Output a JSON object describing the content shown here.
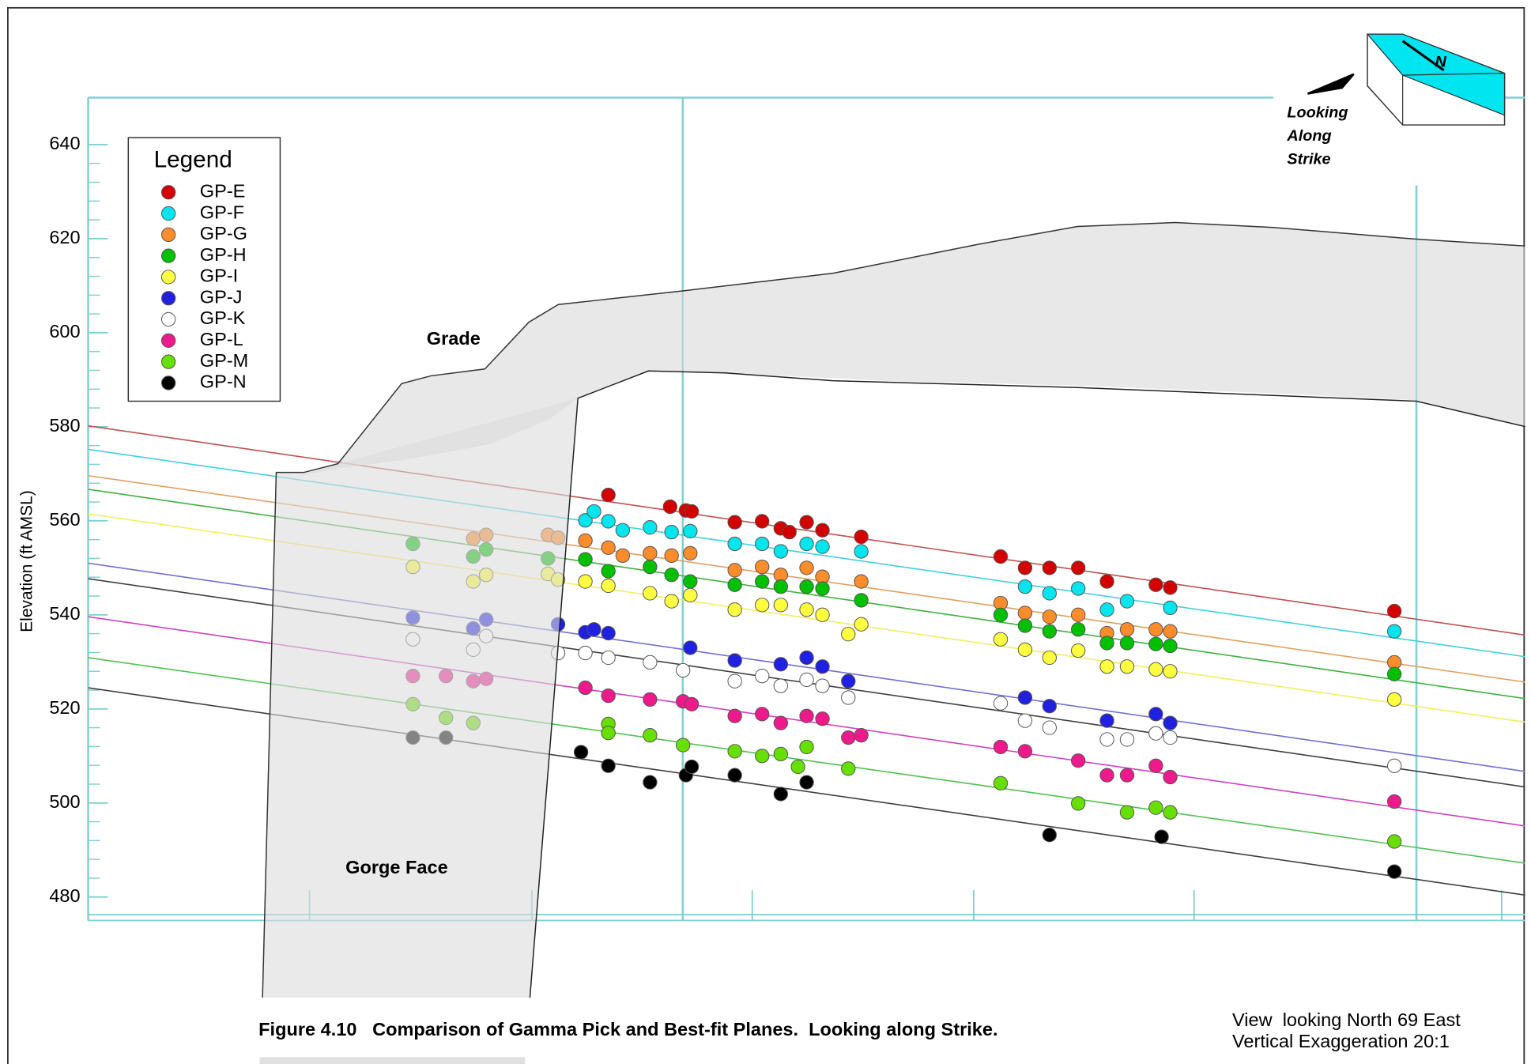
{
  "chart_data": {
    "type": "scatter",
    "legend_title": "Legend",
    "y_label": "Elevation (ft AMSL)",
    "annotations": {
      "grade": "Grade",
      "gorge_face": "Gorge Face",
      "compass": [
        "Looking",
        "Along",
        "Strike"
      ],
      "compass_n": "N"
    },
    "caption": "Figure 4.10   Comparison of Gamma Pick and Best-fit Planes.  Looking along Strike.",
    "view_note": [
      "View  looking North 69 East",
      "Vertical Exaggeration 20:1"
    ],
    "xlim": [
      0,
      100
    ],
    "ylim": [
      475,
      650
    ],
    "yticks": [
      480,
      500,
      520,
      540,
      560,
      580,
      600,
      620,
      640
    ],
    "series": [
      {
        "name": "GP-E",
        "color": "#d40000",
        "line_color": "#c05050",
        "fit_x": [
          0,
          100
        ],
        "fit_y": [
          580.2,
          535.7
        ],
        "x": [
          36.2,
          40.5,
          41.6,
          42.0,
          45.0,
          46.9,
          48.2,
          48.8,
          50.0,
          51.1,
          53.8,
          63.5,
          65.2,
          66.9,
          68.9,
          70.9,
          74.3,
          75.3,
          90.9
        ],
        "values": [
          565.5,
          563.0,
          562.2,
          562.0,
          559.7,
          559.9,
          558.4,
          557.6,
          559.7,
          558.0,
          556.6,
          552.4,
          550.0,
          550.0,
          550.0,
          547.1,
          546.4,
          545.8,
          540.8
        ]
      },
      {
        "name": "GP-F",
        "color": "#00e5ee",
        "line_color": "#40d0e0",
        "fit_x": [
          0,
          100
        ],
        "fit_y": [
          575.2,
          531.1
        ],
        "x": [
          34.6,
          35.2,
          36.2,
          37.2,
          39.1,
          40.6,
          41.9,
          45.0,
          46.9,
          48.2,
          50.0,
          51.1,
          53.8,
          65.2,
          66.9,
          68.9,
          70.9,
          72.3,
          75.3,
          90.9
        ],
        "values": [
          560.1,
          562.0,
          559.9,
          558.0,
          558.6,
          557.6,
          557.8,
          555.1,
          555.1,
          553.5,
          555.1,
          554.5,
          553.5,
          546.0,
          544.6,
          545.6,
          541.1,
          542.9,
          541.5,
          536.5
        ]
      },
      {
        "name": "GP-G",
        "color": "#ff8c2a",
        "line_color": "#e0a060",
        "fit_x": [
          0,
          100
        ],
        "fit_y": [
          569.6,
          525.7
        ],
        "x": [
          26.8,
          27.7,
          32.0,
          32.7,
          34.6,
          36.2,
          37.2,
          39.1,
          40.6,
          41.9,
          45.0,
          46.9,
          48.2,
          50.0,
          51.1,
          53.8,
          63.5,
          65.2,
          66.9,
          68.9,
          70.9,
          72.3,
          74.3,
          75.3,
          90.9
        ],
        "values": [
          556.2,
          557.0,
          557.0,
          556.4,
          555.8,
          554.3,
          552.6,
          553.1,
          552.6,
          553.1,
          549.5,
          550.2,
          548.5,
          550.0,
          548.1,
          547.1,
          542.5,
          540.4,
          539.6,
          540.0,
          536.1,
          536.9,
          536.9,
          536.5,
          529.9
        ]
      },
      {
        "name": "GP-H",
        "color": "#00c000",
        "line_color": "#40b040",
        "fit_x": [
          0,
          100
        ],
        "fit_y": [
          566.7,
          522.2
        ],
        "x": [
          22.6,
          26.8,
          27.7,
          32.0,
          34.6,
          36.2,
          39.1,
          40.6,
          41.9,
          45.0,
          46.9,
          48.2,
          50.0,
          51.1,
          53.8,
          63.5,
          65.2,
          66.9,
          68.9,
          70.9,
          72.3,
          74.3,
          75.3,
          90.9
        ],
        "values": [
          555.1,
          552.4,
          553.9,
          552.0,
          551.8,
          549.3,
          550.2,
          548.5,
          547.1,
          546.4,
          547.1,
          546.0,
          546.0,
          545.6,
          543.1,
          540.0,
          537.7,
          536.5,
          536.9,
          534.0,
          534.0,
          533.8,
          533.4,
          527.4
        ]
      },
      {
        "name": "GP-I",
        "color": "#ffff40",
        "line_color": "#f0f060",
        "fit_x": [
          0,
          100
        ],
        "fit_y": [
          561.5,
          517.2
        ],
        "x": [
          22.6,
          26.8,
          27.7,
          32.0,
          32.7,
          34.6,
          36.2,
          39.1,
          40.6,
          41.9,
          45.0,
          46.9,
          48.2,
          50.0,
          51.1,
          52.9,
          53.8,
          63.5,
          65.2,
          66.9,
          68.9,
          70.9,
          72.3,
          74.3,
          75.3,
          90.9
        ],
        "values": [
          550.2,
          547.1,
          548.5,
          548.7,
          547.5,
          547.1,
          546.2,
          544.6,
          542.9,
          544.2,
          541.1,
          542.1,
          542.1,
          541.1,
          540.0,
          535.9,
          538.0,
          534.8,
          532.6,
          530.9,
          532.4,
          529.0,
          529.0,
          528.4,
          528.0,
          522.0
        ]
      },
      {
        "name": "GP-J",
        "color": "#2020e0",
        "line_color": "#7070d0",
        "fit_x": [
          0,
          100
        ],
        "fit_y": [
          551.0,
          506.7
        ],
        "x": [
          22.6,
          26.8,
          27.7,
          32.7,
          34.6,
          35.2,
          36.2,
          41.9,
          45.0,
          48.2,
          50.0,
          51.1,
          52.9,
          65.2,
          66.9,
          70.9,
          74.3,
          75.3
        ],
        "values": [
          539.4,
          537.1,
          539.0,
          538.0,
          536.3,
          536.9,
          536.1,
          533.0,
          530.3,
          529.5,
          530.9,
          529.0,
          525.9,
          522.4,
          520.6,
          517.5,
          518.9,
          517.0
        ]
      },
      {
        "name": "GP-K",
        "color": "#ffffff",
        "line_color": "#404040",
        "fit_x": [
          0,
          100
        ],
        "fit_y": [
          547.7,
          503.4
        ],
        "x": [
          22.6,
          26.8,
          27.7,
          32.7,
          34.6,
          36.2,
          39.1,
          41.4,
          45.0,
          46.9,
          48.2,
          50.0,
          51.1,
          52.9,
          63.5,
          65.2,
          66.9,
          70.9,
          72.3,
          74.3,
          75.3,
          90.9
        ],
        "values": [
          534.8,
          532.6,
          535.5,
          531.9,
          531.9,
          530.9,
          529.9,
          528.2,
          525.9,
          527.0,
          524.9,
          526.2,
          524.9,
          522.4,
          521.2,
          517.5,
          516.0,
          513.5,
          513.5,
          514.8,
          513.9,
          507.9
        ]
      },
      {
        "name": "GP-L",
        "color": "#ee1a8c",
        "line_color": "#d040c0",
        "fit_x": [
          0,
          100
        ],
        "fit_y": [
          539.6,
          495.1
        ],
        "x": [
          22.6,
          24.9,
          26.8,
          27.7,
          34.6,
          36.2,
          39.1,
          41.4,
          42.0,
          45.0,
          46.9,
          48.2,
          50.0,
          51.1,
          52.9,
          53.8,
          63.5,
          65.2,
          68.9,
          70.9,
          72.3,
          74.3,
          75.3,
          90.9
        ],
        "values": [
          527.0,
          527.0,
          525.9,
          526.4,
          524.5,
          522.8,
          522.0,
          521.6,
          521.0,
          518.5,
          518.9,
          517.0,
          518.5,
          517.9,
          513.9,
          514.4,
          511.9,
          511.0,
          509.0,
          505.9,
          505.9,
          507.9,
          505.5,
          500.3
        ]
      },
      {
        "name": "GP-M",
        "color": "#66e000",
        "line_color": "#50c050",
        "fit_x": [
          0,
          100
        ],
        "fit_y": [
          530.9,
          487.2
        ],
        "x": [
          22.6,
          24.9,
          26.8,
          36.2,
          36.2,
          39.1,
          41.4,
          45.0,
          46.9,
          48.2,
          49.4,
          50.0,
          52.9,
          63.5,
          68.9,
          72.3,
          74.3,
          75.3,
          90.9
        ],
        "values": [
          521.0,
          518.1,
          517.0,
          516.8,
          514.9,
          514.4,
          512.3,
          511.0,
          510.0,
          510.4,
          507.7,
          511.9,
          507.3,
          504.2,
          499.9,
          498.0,
          499.0,
          498.0,
          491.8
        ]
      },
      {
        "name": "GP-N",
        "color": "#000000",
        "line_color": "#404040",
        "fit_x": [
          0,
          100
        ],
        "fit_y": [
          524.5,
          480.4
        ],
        "x": [
          22.6,
          24.9,
          34.3,
          36.2,
          39.1,
          41.6,
          42.0,
          45.0,
          48.2,
          50.0,
          66.9,
          74.7,
          90.9
        ],
        "values": [
          513.9,
          513.9,
          510.8,
          507.9,
          504.4,
          505.9,
          507.7,
          505.9,
          501.9,
          504.4,
          493.2,
          492.8,
          485.4
        ]
      }
    ]
  }
}
